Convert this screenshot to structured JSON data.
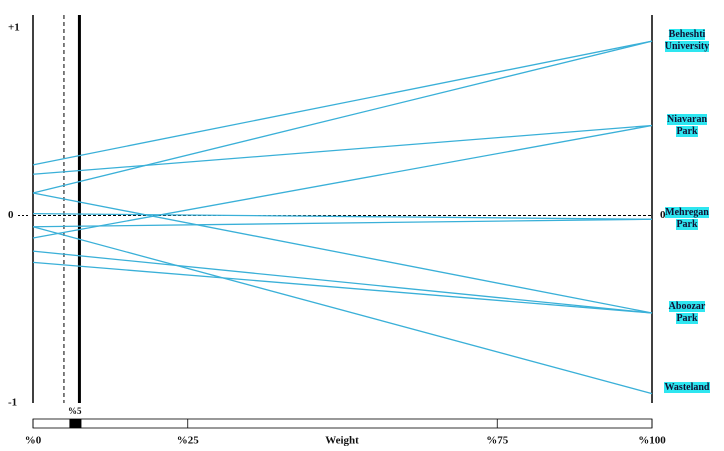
{
  "chart_data": {
    "type": "weight-sensitivity",
    "xlabel": "Weight",
    "xlim": [
      0,
      100
    ],
    "xticks": [
      {
        "value": 0,
        "label": "%0"
      },
      {
        "value": 25,
        "label": "%25"
      },
      {
        "value": 75,
        "label": "%75"
      },
      {
        "value": 100,
        "label": "%100"
      }
    ],
    "ylim": [
      -1,
      1
    ],
    "yticks": [
      {
        "value": 1,
        "label": "+1"
      },
      0,
      {
        "value": -1,
        "label": "-1"
      }
    ],
    "weight_marker": {
      "value": 5,
      "label": "%5"
    },
    "current_weight": 7.5,
    "line_color": "#3ab0d8",
    "label_color": "#2ee6f0",
    "series": [
      {
        "name": "Beheshti University",
        "lines": [
          {
            "values": [
              0.27,
              0.93
            ]
          },
          {
            "values": [
              0.12,
              0.93
            ]
          }
        ]
      },
      {
        "name": "Niavaran Park",
        "lines": [
          {
            "values": [
              0.22,
              0.48
            ]
          },
          {
            "values": [
              -0.12,
              0.48
            ]
          }
        ]
      },
      {
        "name": "Mehregan Park",
        "lines": [
          {
            "values": [
              0.01,
              -0.02
            ]
          },
          {
            "values": [
              -0.06,
              -0.02
            ]
          }
        ]
      },
      {
        "name": "Aboozar Park",
        "lines": [
          {
            "values": [
              0.12,
              -0.52
            ]
          },
          {
            "values": [
              -0.19,
              -0.52
            ]
          },
          {
            "values": [
              -0.25,
              -0.52
            ]
          }
        ]
      },
      {
        "name": "Wasteland",
        "lines": [
          {
            "values": [
              -0.06,
              -0.95
            ]
          }
        ]
      }
    ]
  }
}
